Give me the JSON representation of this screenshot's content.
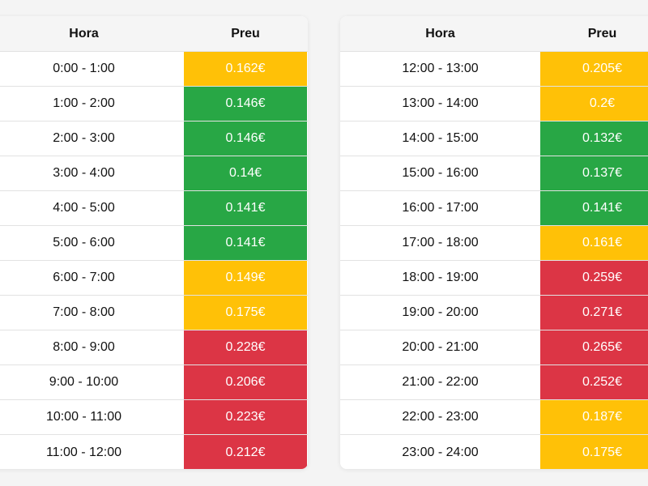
{
  "headers": {
    "hour": "Hora",
    "price": "Preu"
  },
  "colors": {
    "green": "#28a745",
    "yellow": "#ffc107",
    "red": "#dc3545"
  },
  "left_table": [
    {
      "hour": "0:00 - 1:00",
      "price": "0.162€",
      "level": "yellow"
    },
    {
      "hour": "1:00 - 2:00",
      "price": "0.146€",
      "level": "green"
    },
    {
      "hour": "2:00 - 3:00",
      "price": "0.146€",
      "level": "green"
    },
    {
      "hour": "3:00 - 4:00",
      "price": "0.14€",
      "level": "green"
    },
    {
      "hour": "4:00 - 5:00",
      "price": "0.141€",
      "level": "green"
    },
    {
      "hour": "5:00 - 6:00",
      "price": "0.141€",
      "level": "green"
    },
    {
      "hour": "6:00 - 7:00",
      "price": "0.149€",
      "level": "yellow"
    },
    {
      "hour": "7:00 - 8:00",
      "price": "0.175€",
      "level": "yellow"
    },
    {
      "hour": "8:00 - 9:00",
      "price": "0.228€",
      "level": "red"
    },
    {
      "hour": "9:00 - 10:00",
      "price": "0.206€",
      "level": "red"
    },
    {
      "hour": "10:00 - 11:00",
      "price": "0.223€",
      "level": "red"
    },
    {
      "hour": "11:00 - 12:00",
      "price": "0.212€",
      "level": "red"
    }
  ],
  "right_table": [
    {
      "hour": "12:00 - 13:00",
      "price": "0.205€",
      "level": "yellow"
    },
    {
      "hour": "13:00 - 14:00",
      "price": "0.2€",
      "level": "yellow"
    },
    {
      "hour": "14:00 - 15:00",
      "price": "0.132€",
      "level": "green"
    },
    {
      "hour": "15:00 - 16:00",
      "price": "0.137€",
      "level": "green"
    },
    {
      "hour": "16:00 - 17:00",
      "price": "0.141€",
      "level": "green"
    },
    {
      "hour": "17:00 - 18:00",
      "price": "0.161€",
      "level": "yellow"
    },
    {
      "hour": "18:00 - 19:00",
      "price": "0.259€",
      "level": "red"
    },
    {
      "hour": "19:00 - 20:00",
      "price": "0.271€",
      "level": "red"
    },
    {
      "hour": "20:00 - 21:00",
      "price": "0.265€",
      "level": "red"
    },
    {
      "hour": "21:00 - 22:00",
      "price": "0.252€",
      "level": "red"
    },
    {
      "hour": "22:00 - 23:00",
      "price": "0.187€",
      "level": "yellow"
    },
    {
      "hour": "23:00 - 24:00",
      "price": "0.175€",
      "level": "yellow"
    }
  ]
}
